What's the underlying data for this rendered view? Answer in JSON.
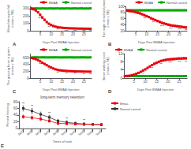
{
  "chart_data": [
    {
      "type": "line",
      "panel_label": "A",
      "xlabel": "Days Post BMAA Injection",
      "ylabel": "Mean latency to fall\n(mean ± SE)",
      "x": [
        1,
        2,
        3,
        4,
        5,
        6,
        7,
        8,
        9,
        10,
        11,
        12,
        13,
        14,
        15,
        16,
        17,
        18,
        19,
        20,
        21,
        22,
        23,
        24,
        25,
        26,
        27,
        28
      ],
      "xlim": [
        0.5,
        28.5
      ],
      "xticks": [
        5,
        10,
        15,
        20,
        25
      ],
      "ylim": [
        0,
        330
      ],
      "yticks": [
        0,
        100,
        200,
        300
      ],
      "grid": false,
      "legend": "upper right",
      "marker": "square",
      "series": [
        {
          "name": "BMAA",
          "color": "#e8000d",
          "values": [
            300,
            290,
            275,
            250,
            215,
            180,
            148,
            118,
            95,
            78,
            65,
            56,
            50,
            45,
            42,
            39,
            37,
            35,
            34,
            33,
            32,
            31,
            30,
            30,
            29,
            29,
            28,
            28
          ],
          "errors": [
            12,
            12,
            13,
            13,
            14,
            13,
            12,
            11,
            10,
            9,
            8,
            7,
            6,
            6,
            5,
            5,
            5,
            4,
            4,
            4,
            4,
            3,
            3,
            3,
            3,
            3,
            3,
            3
          ]
        },
        {
          "name": "Normal control",
          "color": "#00aa00",
          "values": [
            298,
            300,
            302,
            301,
            300,
            302,
            301,
            300,
            301,
            302,
            300,
            301,
            302,
            300,
            301,
            300,
            302,
            301,
            300,
            301,
            302,
            300,
            301,
            302,
            300,
            301,
            300,
            302
          ],
          "errors": [
            8,
            8,
            8,
            8,
            8,
            8,
            8,
            8,
            8,
            8,
            8,
            8,
            8,
            8,
            8,
            8,
            8,
            8,
            8,
            8,
            8,
            8,
            8,
            8,
            8,
            8,
            8,
            8
          ]
        }
      ],
      "annotations": [
        {
          "x": 5,
          "text": "***",
          "series": "BMAA",
          "position": "below"
        },
        {
          "x": 9,
          "text": "**",
          "series": "BMAA",
          "position": "below"
        },
        {
          "x": 13,
          "text": "**",
          "series": "BMAA",
          "position": "below"
        },
        {
          "x": 17,
          "text": "***",
          "series": "BMAA",
          "position": "below"
        },
        {
          "x": 21,
          "text": "***",
          "series": "BMAA",
          "position": "below"
        },
        {
          "x": 25,
          "text": "***",
          "series": "BMAA",
          "position": "below"
        },
        {
          "x": 28,
          "text": "**",
          "series": "BMAA",
          "position": "below"
        }
      ]
    },
    {
      "type": "line",
      "panel_label": "B",
      "xlabel": "Days Post BMAA Injection",
      "ylabel": "The angle of inclined plane\n(mean ± SE)",
      "x": [
        1,
        2,
        3,
        4,
        5,
        6,
        7,
        8,
        9,
        10,
        11,
        12,
        13,
        14,
        15,
        16,
        17,
        18,
        19,
        20,
        21,
        22,
        23,
        24,
        25,
        26,
        27,
        28
      ],
      "xlim": [
        0.5,
        28.5
      ],
      "xticks": [
        5,
        10,
        15,
        20,
        25
      ],
      "ylim": [
        20,
        100
      ],
      "yticks": [
        20,
        40,
        60,
        80,
        100
      ],
      "grid": false,
      "legend": "upper right",
      "marker": "square",
      "series": [
        {
          "name": "BMAA",
          "color": "#e8000d",
          "values": [
            86,
            85,
            84,
            83,
            81,
            79,
            77,
            74,
            71,
            68,
            65,
            61,
            58,
            55,
            52,
            49,
            46,
            44,
            42,
            40,
            38,
            37,
            36,
            35,
            34,
            33,
            32,
            31
          ],
          "errors": [
            3,
            3,
            3,
            3,
            3,
            3,
            3,
            3,
            3,
            3,
            3,
            3,
            3,
            3,
            3,
            3,
            3,
            3,
            3,
            3,
            3,
            3,
            3,
            3,
            3,
            3,
            3,
            3
          ]
        },
        {
          "name": "Normal control",
          "color": "#00aa00",
          "values": [
            87,
            87,
            87,
            87,
            87,
            87,
            87,
            87,
            87,
            87,
            87,
            87,
            87,
            87,
            87,
            87,
            87,
            87,
            87,
            87,
            87,
            87,
            87,
            87,
            87,
            87,
            87,
            87
          ],
          "errors": [
            2,
            2,
            2,
            2,
            2,
            2,
            2,
            2,
            2,
            2,
            2,
            2,
            2,
            2,
            2,
            2,
            2,
            2,
            2,
            2,
            2,
            2,
            2,
            2,
            2,
            2,
            2,
            2
          ]
        }
      ],
      "annotations": [
        {
          "x": 9,
          "text": "**",
          "series": "BMAA",
          "position": "below"
        },
        {
          "x": 13,
          "text": "**",
          "series": "BMAA",
          "position": "below"
        },
        {
          "x": 17,
          "text": "***",
          "series": "BMAA",
          "position": "below"
        },
        {
          "x": 21,
          "text": "***",
          "series": "BMAA",
          "position": "below"
        },
        {
          "x": 25,
          "text": "***",
          "series": "BMAA",
          "position": "below"
        },
        {
          "x": 28,
          "text": "**",
          "series": "BMAA",
          "position": "below"
        }
      ]
    },
    {
      "type": "line",
      "panel_label": "C",
      "xlabel": "Days Post BMAA Injection",
      "ylabel": "The gripping force in grams\n(mean ± SE)",
      "x": [
        1,
        2,
        3,
        4,
        5,
        6,
        7,
        8,
        9,
        10,
        11,
        12,
        13,
        14,
        15,
        16,
        17,
        18,
        19,
        20,
        21,
        22,
        23,
        24,
        25,
        26,
        27,
        28
      ],
      "xlim": [
        0.5,
        28.5
      ],
      "xticks": [
        5,
        10,
        15,
        20,
        25
      ],
      "ylim": [
        0,
        700
      ],
      "yticks": [
        0,
        200,
        400,
        600
      ],
      "grid": false,
      "legend": "upper right",
      "marker": "square",
      "series": [
        {
          "name": "BMAA",
          "color": "#e8000d",
          "values": [
            590,
            575,
            555,
            525,
            490,
            452,
            415,
            378,
            342,
            310,
            282,
            258,
            240,
            228,
            220,
            215,
            210,
            206,
            203,
            200,
            198,
            196,
            195,
            193,
            192,
            191,
            190,
            189
          ],
          "errors": [
            25,
            25,
            25,
            25,
            24,
            23,
            22,
            20,
            18,
            16,
            14,
            13,
            12,
            11,
            10,
            10,
            9,
            9,
            9,
            8,
            8,
            8,
            7,
            7,
            7,
            7,
            7,
            7
          ]
        },
        {
          "name": "Normal control",
          "color": "#00aa00",
          "values": [
            600,
            605,
            607,
            606,
            605,
            607,
            606,
            605,
            604,
            606,
            605,
            607,
            606,
            605,
            604,
            606,
            605,
            607,
            606,
            605,
            604,
            606,
            605,
            607,
            606,
            605,
            604,
            606
          ],
          "errors": [
            15,
            15,
            15,
            15,
            15,
            15,
            15,
            15,
            15,
            15,
            15,
            15,
            15,
            15,
            15,
            15,
            15,
            15,
            15,
            15,
            15,
            15,
            15,
            15,
            15,
            15,
            15,
            15
          ]
        }
      ],
      "annotations": [
        {
          "x": 5,
          "text": "**",
          "series": "BMAA",
          "position": "below"
        },
        {
          "x": 9,
          "text": "**",
          "series": "BMAA",
          "position": "below"
        },
        {
          "x": 13,
          "text": "**",
          "series": "BMAA",
          "position": "below"
        },
        {
          "x": 17,
          "text": "**",
          "series": "BMAA",
          "position": "below"
        },
        {
          "x": 21,
          "text": "**",
          "series": "BMAA",
          "position": "below"
        },
        {
          "x": 25,
          "text": "**",
          "series": "BMAA",
          "position": "below"
        },
        {
          "x": 28,
          "text": "**",
          "series": "BMAA",
          "position": "below"
        }
      ]
    },
    {
      "type": "line",
      "panel_label": "D",
      "xlabel": "Days Post BMAA Injection",
      "ylabel": "Beam walking score\n(mean ± SE)",
      "x": [
        1,
        2,
        3,
        4,
        5,
        6,
        7,
        8,
        9,
        10,
        11,
        12,
        13,
        14,
        15,
        16,
        17,
        18,
        19,
        20,
        21,
        22,
        23,
        24,
        25,
        26,
        27,
        28
      ],
      "xlim": [
        0.5,
        28.5
      ],
      "xticks": [
        5,
        10,
        15,
        20,
        25
      ],
      "ylim": [
        0,
        12
      ],
      "yticks": [
        0,
        4,
        8,
        12
      ],
      "grid": false,
      "legend": "upper left",
      "marker": "square",
      "series": [
        {
          "name": "BMAA",
          "color": "#e8000d",
          "values": [
            1,
            1.1,
            1.2,
            1.4,
            1.7,
            2.1,
            2.6,
            3.1,
            3.7,
            4.3,
            5.0,
            5.7,
            6.4,
            7.0,
            7.5,
            8.0,
            8.4,
            8.7,
            8.9,
            9.1,
            9.2,
            9.3,
            9.4,
            9.5,
            9.6,
            9.6,
            9.7,
            9.7
          ],
          "errors": [
            0.1,
            0.1,
            0.1,
            0.1,
            0.2,
            0.2,
            0.2,
            0.3,
            0.3,
            0.3,
            0.4,
            0.4,
            0.4,
            0.5,
            0.5,
            0.5,
            0.5,
            0.5,
            0.5,
            0.5,
            0.5,
            0.5,
            0.5,
            0.5,
            0.5,
            0.5,
            0.5,
            0.5
          ]
        },
        {
          "name": "Normal control",
          "color": "#00aa00",
          "values": [
            1,
            1,
            1,
            1,
            1,
            1,
            1,
            1,
            1,
            1,
            1,
            1,
            1,
            1,
            1,
            1,
            1,
            1,
            1,
            1,
            1,
            1,
            1,
            1,
            1,
            1,
            1,
            1
          ],
          "errors": [
            0.1,
            0.1,
            0.1,
            0.1,
            0.1,
            0.1,
            0.1,
            0.1,
            0.1,
            0.1,
            0.1,
            0.1,
            0.1,
            0.1,
            0.1,
            0.1,
            0.1,
            0.1,
            0.1,
            0.1,
            0.1,
            0.1,
            0.1,
            0.1,
            0.1,
            0.1,
            0.1,
            0.1
          ]
        }
      ],
      "annotations": [
        {
          "x": 9,
          "text": "**",
          "series": "BMAA",
          "position": "below"
        },
        {
          "x": 13,
          "text": "**",
          "series": "BMAA",
          "position": "below"
        },
        {
          "x": 17,
          "text": "**",
          "series": "BMAA",
          "position": "below"
        },
        {
          "x": 21,
          "text": "***",
          "series": "BMAA",
          "position": "below"
        },
        {
          "x": 25,
          "text": "***",
          "series": "BMAA",
          "position": "below"
        },
        {
          "x": 28,
          "text": "**",
          "series": "BMAA",
          "position": "below"
        }
      ]
    },
    {
      "type": "line",
      "panel_label": "E",
      "title": "long-term memory retention",
      "xlabel": "Times of trials",
      "ylabel": "Percent freezing",
      "categories": [
        "Acq1",
        "Acq2",
        "Acq3",
        "Acq4",
        "Acq5",
        "Test1",
        "Test2",
        "Test3",
        "Test4",
        "Test5"
      ],
      "ylim": [
        0,
        80
      ],
      "yticks": [
        0,
        20,
        40,
        60,
        80
      ],
      "grid": false,
      "legend": "upper right",
      "marker": "square",
      "series": [
        {
          "name": "Bmaa",
          "color": "#e8000d",
          "values": [
            35,
            32,
            28,
            22,
            15,
            14,
            13,
            12,
            12,
            11
          ],
          "errors": [
            5,
            5,
            5,
            4,
            4,
            3,
            3,
            3,
            3,
            3
          ]
        },
        {
          "name": "Normal control",
          "color": "#333333",
          "values": [
            60,
            52,
            42,
            33,
            22,
            18,
            15,
            13,
            12,
            11
          ],
          "errors": [
            8,
            8,
            7,
            6,
            5,
            5,
            4,
            4,
            3,
            3
          ]
        }
      ],
      "annotations": [
        {
          "x": "Acq1",
          "text": "**",
          "series": "Normal control",
          "position": "above"
        },
        {
          "x": "Acq2",
          "text": "**",
          "series": "Normal control",
          "position": "above"
        },
        {
          "x": "Acq4",
          "text": "**",
          "series": "Normal control",
          "position": "above"
        },
        {
          "x": "Test1",
          "text": "**",
          "series": "Normal control",
          "position": "above"
        },
        {
          "x": "Test3",
          "text": "**",
          "series": "Normal control",
          "position": "above"
        }
      ]
    }
  ]
}
